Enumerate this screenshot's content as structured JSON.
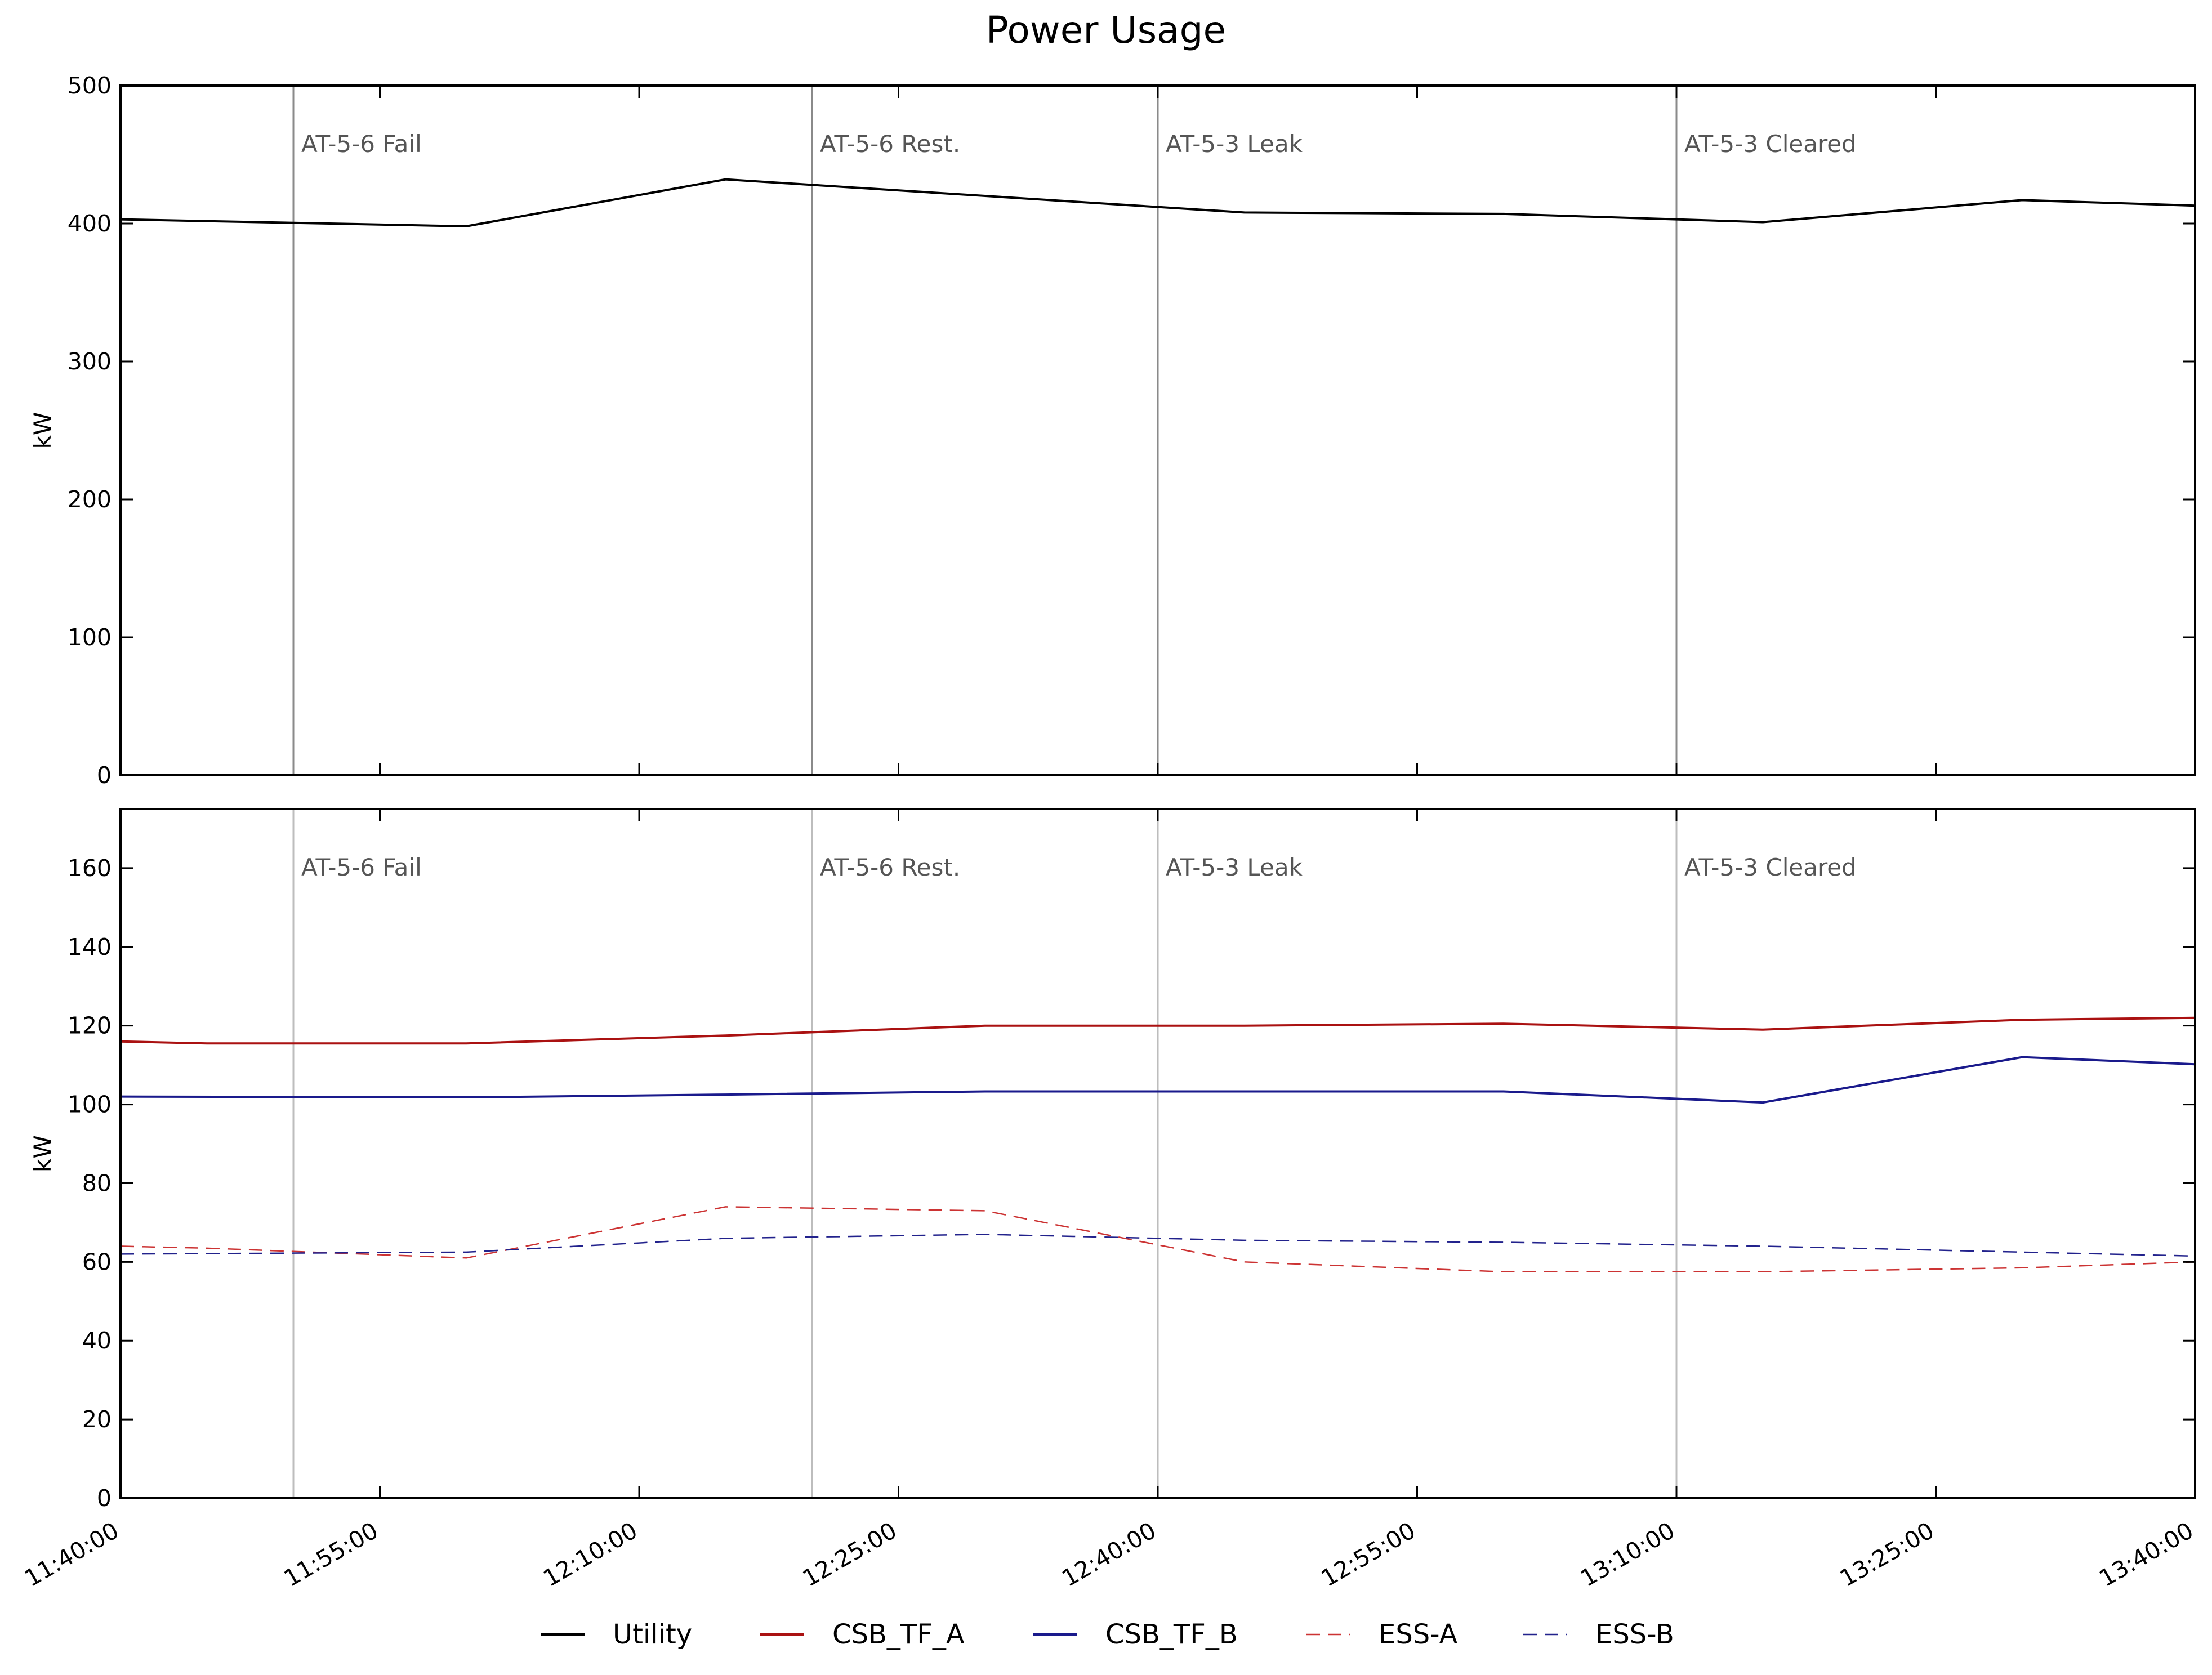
{
  "chart_data": {
    "type": "line",
    "title": "Power Usage",
    "x_ticks": [
      "11:40:00",
      "11:55:00",
      "12:10:00",
      "12:25:00",
      "12:40:00",
      "12:55:00",
      "13:10:00",
      "13:25:00",
      "13:40:00"
    ],
    "xlim": [
      "11:40:00",
      "13:40:00"
    ],
    "events": [
      {
        "time": "11:50:00",
        "label": "AT-5-6 Fail"
      },
      {
        "time": "12:20:00",
        "label": "AT-5-6 Rest."
      },
      {
        "time": "12:40:00",
        "label": "AT-5-3 Leak"
      },
      {
        "time": "13:10:00",
        "label": "AT-5-3 Cleared"
      }
    ],
    "legend": {
      "position": "bottom-center",
      "entries": [
        "Utility",
        "CSB_TF_A",
        "CSB_TF_B",
        "ESS-A",
        "ESS-B"
      ]
    },
    "panels": [
      {
        "ylabel": "kW",
        "ylim": [
          0,
          500
        ],
        "yticks": [
          0,
          100,
          200,
          300,
          400,
          500
        ],
        "series": [
          {
            "name": "Utility",
            "color": "#000000",
            "dash": false,
            "points": [
              [
                "11:40:00",
                403
              ],
              [
                "12:00:00",
                398
              ],
              [
                "12:15:00",
                432
              ],
              [
                "12:40:00",
                412
              ],
              [
                "12:45:00",
                408
              ],
              [
                "13:00:00",
                407
              ],
              [
                "13:10:00",
                403
              ],
              [
                "13:15:00",
                401
              ],
              [
                "13:30:00",
                417
              ],
              [
                "13:40:00",
                413
              ]
            ]
          }
        ]
      },
      {
        "ylabel": "kW",
        "ylim": [
          0,
          175
        ],
        "yticks": [
          0,
          20,
          40,
          60,
          80,
          100,
          120,
          140,
          160
        ],
        "series": [
          {
            "name": "CSB_TF_A",
            "color": "#aa1111",
            "dash": false,
            "points": [
              [
                "11:40:00",
                116
              ],
              [
                "11:45:00",
                115.5
              ],
              [
                "12:00:00",
                115.5
              ],
              [
                "12:15:00",
                117.5
              ],
              [
                "12:30:00",
                120
              ],
              [
                "12:45:00",
                120
              ],
              [
                "13:00:00",
                120.5
              ],
              [
                "13:15:00",
                119
              ],
              [
                "13:30:00",
                121.5
              ],
              [
                "13:40:00",
                122
              ]
            ]
          },
          {
            "name": "CSB_TF_B",
            "color": "#1a1a8c",
            "dash": false,
            "points": [
              [
                "11:40:00",
                102
              ],
              [
                "12:00:00",
                101.8
              ],
              [
                "12:15:00",
                102.5
              ],
              [
                "12:30:00",
                103.3
              ],
              [
                "12:45:00",
                103.3
              ],
              [
                "13:00:00",
                103.3
              ],
              [
                "13:15:00",
                100.5
              ],
              [
                "13:30:00",
                112
              ],
              [
                "13:40:00",
                110.2
              ]
            ]
          },
          {
            "name": "ESS-A",
            "color": "#cc3333",
            "dash": true,
            "points": [
              [
                "11:40:00",
                64
              ],
              [
                "11:45:00",
                63.5
              ],
              [
                "12:00:00",
                61
              ],
              [
                "12:15:00",
                74
              ],
              [
                "12:30:00",
                73
              ],
              [
                "12:45:00",
                60
              ],
              [
                "13:00:00",
                57.5
              ],
              [
                "13:15:00",
                57.5
              ],
              [
                "13:30:00",
                58.5
              ],
              [
                "13:40:00",
                60
              ]
            ]
          },
          {
            "name": "ESS-B",
            "color": "#22228c",
            "dash": true,
            "points": [
              [
                "11:40:00",
                62
              ],
              [
                "12:00:00",
                62.5
              ],
              [
                "12:15:00",
                66
              ],
              [
                "12:30:00",
                67
              ],
              [
                "12:45:00",
                65.5
              ],
              [
                "13:00:00",
                65
              ],
              [
                "13:15:00",
                64
              ],
              [
                "13:30:00",
                62.5
              ],
              [
                "13:40:00",
                61.5
              ]
            ]
          }
        ]
      }
    ]
  }
}
